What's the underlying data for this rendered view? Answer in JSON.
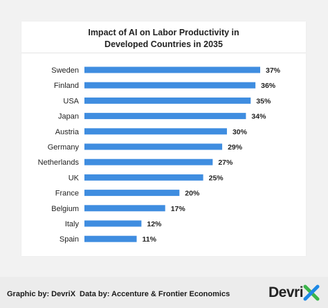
{
  "chart_data": {
    "type": "bar",
    "orientation": "horizontal",
    "title_line1": "Impact of AI on Labor Productivity in",
    "title_line2": "Developed Countries in 2035",
    "categories": [
      "Sweden",
      "Finland",
      "USA",
      "Japan",
      "Austria",
      "Germany",
      "Netherlands",
      "UK",
      "France",
      "Belgium",
      "Italy",
      "Spain"
    ],
    "values": [
      37,
      36,
      35,
      34,
      30,
      29,
      27,
      25,
      20,
      17,
      12,
      11
    ],
    "value_labels": [
      "37%",
      "36%",
      "35%",
      "34%",
      "30%",
      "29%",
      "27%",
      "25%",
      "20%",
      "17%",
      "12%",
      "11%"
    ],
    "unit": "%",
    "xlim": [
      0,
      37
    ],
    "grid": false,
    "bar_color": "#3f8de0"
  },
  "footer": {
    "graphic_credit": "Graphic by: DevriX",
    "data_credit": "Data by: Accenture & Frontier Economics",
    "logo_text": "Devri",
    "logo_mark": "X",
    "logo_colors": [
      "#3bb54a",
      "#1e88e5"
    ]
  }
}
